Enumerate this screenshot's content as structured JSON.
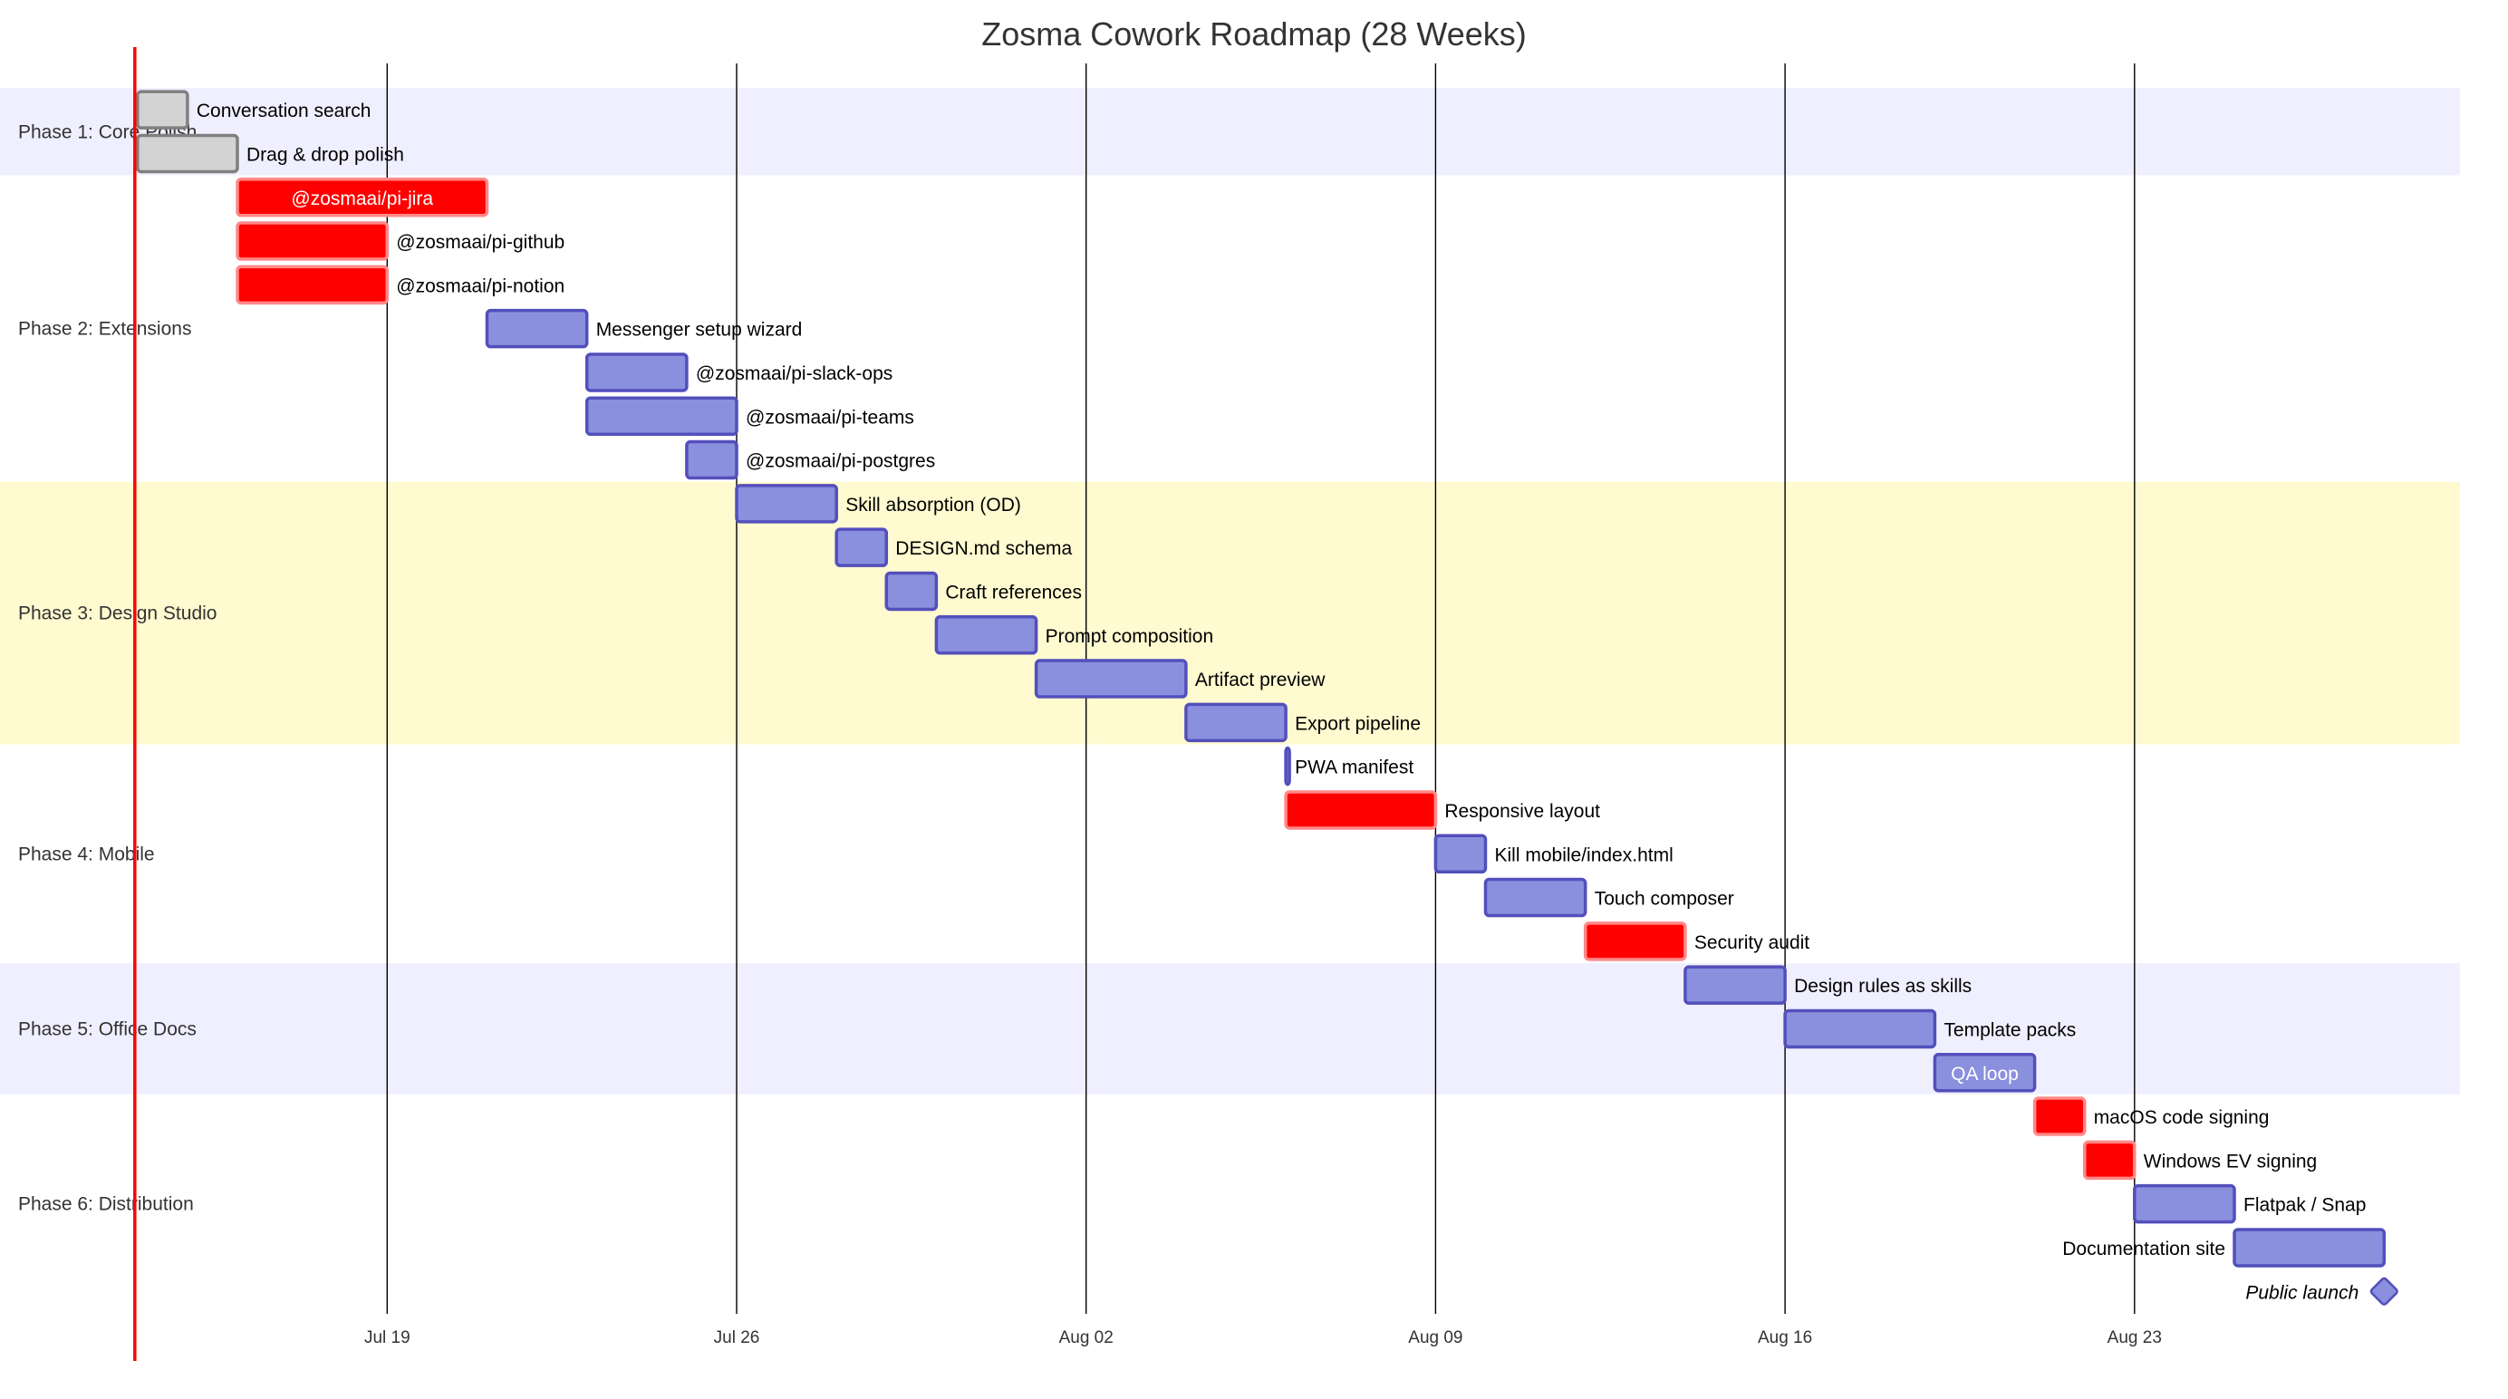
{
  "chart_data": {
    "type": "gantt",
    "title": "Zosma Cowork Roadmap (28 Weeks)",
    "date_range": [
      "2025-07-12",
      "2025-08-31"
    ],
    "today": "2025-07-14",
    "ticks": [
      {
        "date": "2025-07-19",
        "label": "Jul 19"
      },
      {
        "date": "2025-07-26",
        "label": "Jul 26"
      },
      {
        "date": "2025-08-02",
        "label": "Aug 02"
      },
      {
        "date": "2025-08-09",
        "label": "Aug 09"
      },
      {
        "date": "2025-08-16",
        "label": "Aug 16"
      },
      {
        "date": "2025-08-23",
        "label": "Aug 23"
      }
    ],
    "sections": [
      {
        "name": "Phase 1: Core Polish",
        "color": "#efefff",
        "tasks": [
          {
            "name": "Conversation search",
            "start": "2025-07-14",
            "end": "2025-07-15",
            "status": "done"
          },
          {
            "name": "Drag & drop polish",
            "start": "2025-07-14",
            "end": "2025-07-16",
            "status": "done"
          }
        ]
      },
      {
        "name": "Phase 2: Extensions",
        "color": "#ffffff",
        "tasks": [
          {
            "name": "@zosmaai/pi-jira",
            "start": "2025-07-16",
            "end": "2025-07-21",
            "status": "crit"
          },
          {
            "name": "@zosmaai/pi-github",
            "start": "2025-07-16",
            "end": "2025-07-19",
            "status": "crit"
          },
          {
            "name": "@zosmaai/pi-notion",
            "start": "2025-07-16",
            "end": "2025-07-19",
            "status": "crit"
          },
          {
            "name": "Messenger setup wizard",
            "start": "2025-07-21",
            "end": "2025-07-23",
            "status": "active"
          },
          {
            "name": "@zosmaai/pi-slack-ops",
            "start": "2025-07-23",
            "end": "2025-07-25",
            "status": "active"
          },
          {
            "name": "@zosmaai/pi-teams",
            "start": "2025-07-23",
            "end": "2025-07-26",
            "status": "active"
          },
          {
            "name": "@zosmaai/pi-postgres",
            "start": "2025-07-25",
            "end": "2025-07-26",
            "status": "active"
          }
        ]
      },
      {
        "name": "Phase 3: Design Studio",
        "color": "#fffad0",
        "tasks": [
          {
            "name": "Skill absorption (OD)",
            "start": "2025-07-26",
            "end": "2025-07-28",
            "status": "active"
          },
          {
            "name": "DESIGN.md schema",
            "start": "2025-07-28",
            "end": "2025-07-29",
            "status": "active"
          },
          {
            "name": "Craft references",
            "start": "2025-07-29",
            "end": "2025-07-30",
            "status": "active"
          },
          {
            "name": "Prompt composition",
            "start": "2025-07-30",
            "end": "2025-08-01",
            "status": "active"
          },
          {
            "name": "Artifact preview",
            "start": "2025-08-01",
            "end": "2025-08-04",
            "status": "active"
          },
          {
            "name": "Export pipeline",
            "start": "2025-08-04",
            "end": "2025-08-06",
            "status": "active"
          }
        ]
      },
      {
        "name": "Phase 4: Mobile",
        "color": "#ffffff",
        "tasks": [
          {
            "name": "PWA manifest",
            "start": "2025-08-06",
            "end": "2025-08-06",
            "status": "active"
          },
          {
            "name": "Responsive layout",
            "start": "2025-08-06",
            "end": "2025-08-09",
            "status": "crit"
          },
          {
            "name": "Kill mobile/index.html",
            "start": "2025-08-09",
            "end": "2025-08-10",
            "status": "active"
          },
          {
            "name": "Touch composer",
            "start": "2025-08-10",
            "end": "2025-08-12",
            "status": "active"
          },
          {
            "name": "Security audit",
            "start": "2025-08-12",
            "end": "2025-08-14",
            "status": "crit"
          }
        ]
      },
      {
        "name": "Phase 5: Office Docs",
        "color": "#efefff",
        "tasks": [
          {
            "name": "Design rules as skills",
            "start": "2025-08-14",
            "end": "2025-08-16",
            "status": "active"
          },
          {
            "name": "Template packs",
            "start": "2025-08-16",
            "end": "2025-08-19",
            "status": "active"
          },
          {
            "name": "QA loop",
            "start": "2025-08-19",
            "end": "2025-08-21",
            "status": "active"
          }
        ]
      },
      {
        "name": "Phase 6: Distribution",
        "color": "#ffffff",
        "tasks": [
          {
            "name": "macOS code signing",
            "start": "2025-08-21",
            "end": "2025-08-22",
            "status": "crit"
          },
          {
            "name": "Windows EV signing",
            "start": "2025-08-22",
            "end": "2025-08-23",
            "status": "crit"
          },
          {
            "name": "Flatpak / Snap",
            "start": "2025-08-23",
            "end": "2025-08-25",
            "status": "active"
          },
          {
            "name": "Documentation site",
            "start": "2025-08-25",
            "end": "2025-08-28",
            "status": "active"
          },
          {
            "name": "Public launch",
            "start": "2025-08-28",
            "end": "2025-08-28",
            "status": "milestone"
          }
        ]
      }
    ],
    "colors": {
      "done_fill": "#d3d3d3",
      "done_stroke": "#808080",
      "active_fill": "#8a90dd",
      "active_stroke": "#534fbc",
      "crit_fill": "#ff0000",
      "crit_stroke": "#ff8888",
      "today_line": "#ff0000",
      "grid": "#000000"
    }
  }
}
